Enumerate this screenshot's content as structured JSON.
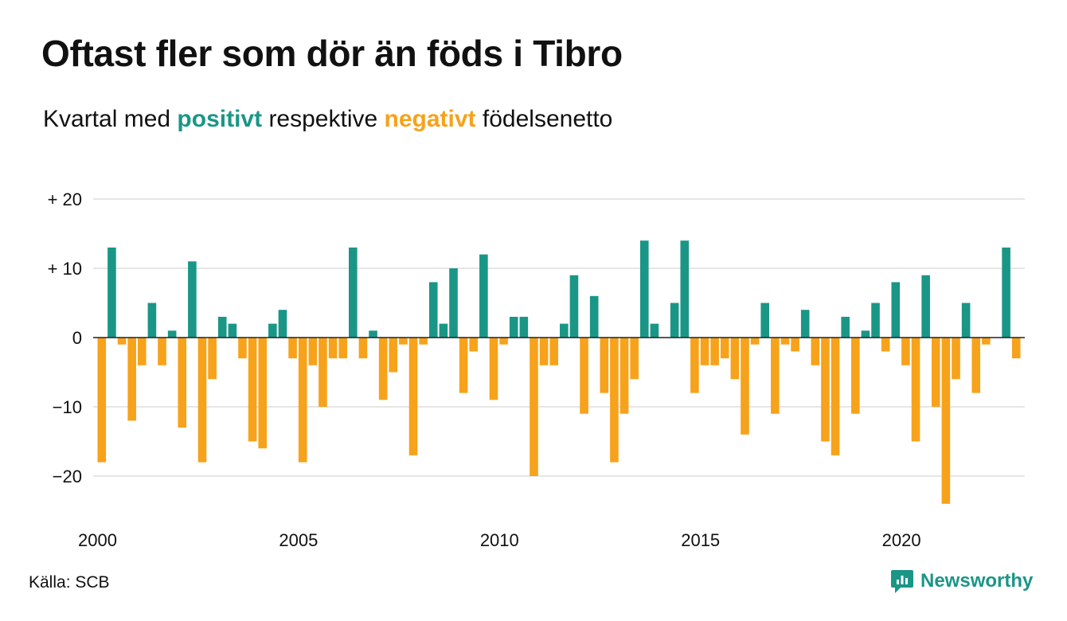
{
  "title": "Oftast fler som dör än föds i Tibro",
  "subtitle": {
    "prefix": "Kvartal med",
    "positive_word": "positivt",
    "middle": "respektive",
    "negative_word": "negativt",
    "suffix": "födelsenetto"
  },
  "source": "Källa: SCB",
  "brand": "Newsworthy",
  "colors": {
    "positive": "#1a9687",
    "negative": "#f7a21b",
    "grid": "#dddddd",
    "zero": "#222222"
  },
  "chart_data": {
    "type": "bar",
    "x_unit": "quarter",
    "start_year": 2000,
    "start_quarter": 1,
    "values": [
      -18,
      13,
      -1,
      -12,
      -4,
      5,
      -4,
      1,
      -13,
      11,
      -18,
      -6,
      3,
      2,
      -3,
      -15,
      -16,
      2,
      4,
      -3,
      -18,
      -4,
      -10,
      -3,
      -3,
      13,
      -3,
      1,
      -9,
      -5,
      -1,
      -17,
      -1,
      8,
      2,
      10,
      -8,
      -2,
      12,
      -9,
      -1,
      3,
      3,
      -20,
      -4,
      -4,
      2,
      9,
      -11,
      6,
      -8,
      -18,
      -11,
      -6,
      14,
      2,
      0,
      5,
      14,
      -8,
      -4,
      -4,
      -3,
      -6,
      -14,
      -1,
      5,
      -11,
      -1,
      -2,
      4,
      -4,
      -15,
      -17,
      3,
      -11,
      1,
      5,
      -2,
      8,
      -4,
      -15,
      9,
      -10,
      -24,
      -6,
      5,
      -8,
      -1,
      0,
      13,
      -3
    ],
    "y_ticks": [
      20,
      10,
      0,
      -10,
      -20
    ],
    "y_tick_labels": [
      "+ 20",
      "+ 10",
      "0",
      "−10",
      "−20"
    ],
    "x_ticks": [
      "2000",
      "2005",
      "2010",
      "2015",
      "2020"
    ],
    "ylim": [
      -25,
      20
    ],
    "grid": true,
    "legend": "none"
  }
}
